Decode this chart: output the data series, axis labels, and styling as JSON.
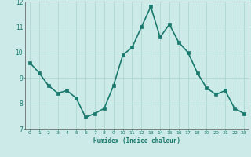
{
  "x": [
    0,
    1,
    2,
    3,
    4,
    5,
    6,
    7,
    8,
    9,
    10,
    11,
    12,
    13,
    14,
    15,
    16,
    17,
    18,
    19,
    20,
    21,
    22,
    23
  ],
  "y": [
    9.6,
    9.2,
    8.7,
    8.4,
    8.5,
    8.2,
    7.45,
    7.6,
    7.8,
    8.7,
    9.9,
    10.2,
    11.0,
    11.8,
    10.6,
    11.1,
    10.4,
    10.0,
    9.2,
    8.6,
    8.35,
    8.5,
    7.8,
    7.6
  ],
  "xlabel": "Humidex (Indice chaleur)",
  "xlim_min": -0.5,
  "xlim_max": 23.5,
  "ylim_min": 7,
  "ylim_max": 12,
  "yticks": [
    7,
    8,
    9,
    10,
    11,
    12
  ],
  "xticks": [
    0,
    1,
    2,
    3,
    4,
    5,
    6,
    7,
    8,
    9,
    10,
    11,
    12,
    13,
    14,
    15,
    16,
    17,
    18,
    19,
    20,
    21,
    22,
    23
  ],
  "line_color": "#1a7a6e",
  "marker_color": "#1a7a6e",
  "bg_color": "#cceae7",
  "grid_color": "#aad4d0",
  "tick_label_color": "#1a7a6e",
  "axis_color": "#555555",
  "xlabel_color": "#1a7a6e",
  "line_width": 1.2,
  "marker_size": 2.5
}
